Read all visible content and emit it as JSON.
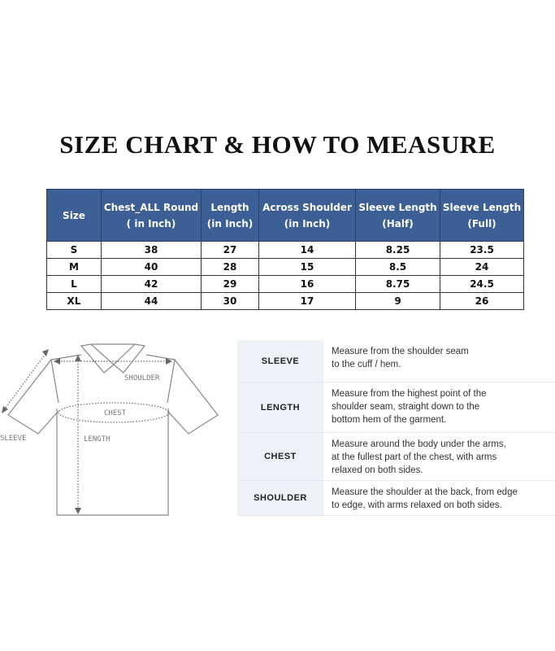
{
  "title": "SIZE CHART & HOW TO MEASURE",
  "table": {
    "headers": [
      "Size",
      "Chest_ALL Round\n( in Inch)",
      "Length\n(in Inch)",
      "Across Shoulder\n(in Inch)",
      "Sleeve Length\n(Half)",
      "Sleeve Length\n(Full)"
    ],
    "rows": [
      [
        "S",
        "38",
        "27",
        "14",
        "8.25",
        "23.5"
      ],
      [
        "M",
        "40",
        "28",
        "15",
        "8.5",
        "24"
      ],
      [
        "L",
        "42",
        "29",
        "16",
        "8.75",
        "24.5"
      ],
      [
        "XL",
        "44",
        "30",
        "17",
        "9",
        "26"
      ]
    ],
    "header_color": "#3c5f96"
  },
  "diagram": {
    "labels": {
      "shoulder": "SHOULDER",
      "chest": "CHEST",
      "sleeve": "SLEEVE",
      "length": "LENGTH"
    }
  },
  "measure": [
    {
      "label": "SLEEVE",
      "desc": "Measure from the shoulder seam\nto the cuff / hem."
    },
    {
      "label": "LENGTH",
      "desc": "Measure from the highest point of the\nshoulder seam, straight down to the\nbottom hem of the garment."
    },
    {
      "label": "CHEST",
      "desc": "Measure around the body under the arms,\nat the fullest part of the chest, with arms\nrelaxed on both sides."
    },
    {
      "label": "SHOULDER",
      "desc": "Measure the shoulder at the back, from edge\nto edge, with arms relaxed on both sides."
    }
  ]
}
